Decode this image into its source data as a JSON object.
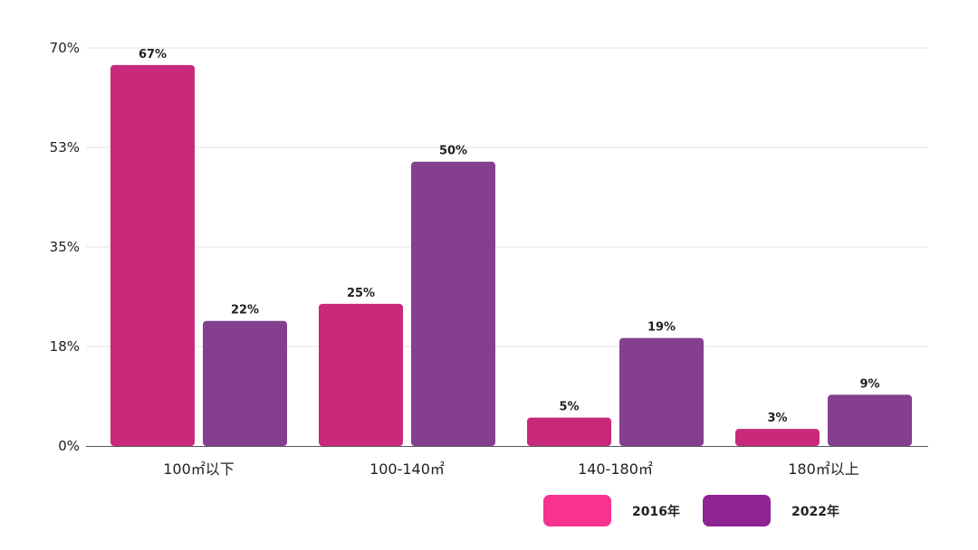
{
  "chart_data": {
    "type": "bar",
    "categories": [
      "100㎡以下",
      "100-140㎡",
      "140-180㎡",
      "180㎡以上"
    ],
    "series": [
      {
        "name": "2016年",
        "values": [
          67,
          25,
          5,
          3
        ],
        "labels": [
          "67%",
          "25%",
          "5%",
          "3%"
        ],
        "color": "#C9297A",
        "legend_color": "#F7328F"
      },
      {
        "name": "2022年",
        "values": [
          22,
          50,
          19,
          9
        ],
        "labels": [
          "22%",
          "50%",
          "19%",
          "9%"
        ],
        "color": "#843F8F",
        "legend_color": "#8E2494"
      }
    ],
    "yticks": [
      0,
      17.5,
      35,
      52.5,
      70
    ],
    "ytick_labels": [
      "0%",
      "18%",
      "35%",
      "53%",
      "70%"
    ],
    "ylim": [
      0,
      70
    ],
    "grid": true,
    "legend_position": "bottom-right",
    "title": "",
    "xlabel": "",
    "ylabel": ""
  }
}
